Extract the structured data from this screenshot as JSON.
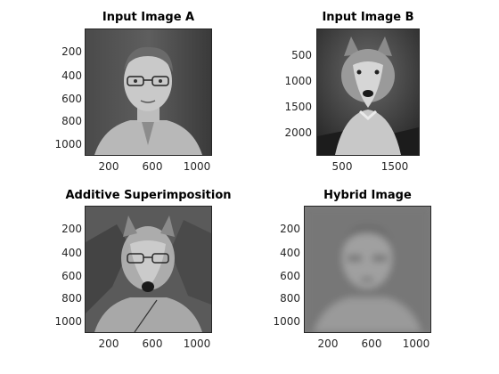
{
  "figure": {
    "panels": [
      {
        "id": "a",
        "title": "Input Image A",
        "xticks": [
          "200",
          "600",
          "1000"
        ],
        "yticks": [
          "200",
          "400",
          "600",
          "800",
          "1000"
        ],
        "image": "portrait-man-glasses"
      },
      {
        "id": "b",
        "title": "Input Image B",
        "xticks": [
          "500",
          "1500"
        ],
        "yticks": [
          "500",
          "1000",
          "1500",
          "2000"
        ],
        "image": "wolf"
      },
      {
        "id": "c",
        "title": "Additive Superimposition",
        "xticks": [
          "200",
          "600",
          "1000"
        ],
        "yticks": [
          "200",
          "400",
          "600",
          "800",
          "1000"
        ],
        "image": "superimposed-man-wolf"
      },
      {
        "id": "d",
        "title": "Hybrid Image",
        "xticks": [
          "200",
          "600",
          "1000"
        ],
        "yticks": [
          "200",
          "400",
          "600",
          "800",
          "1000"
        ],
        "image": "hybrid-blurred-man"
      }
    ]
  }
}
